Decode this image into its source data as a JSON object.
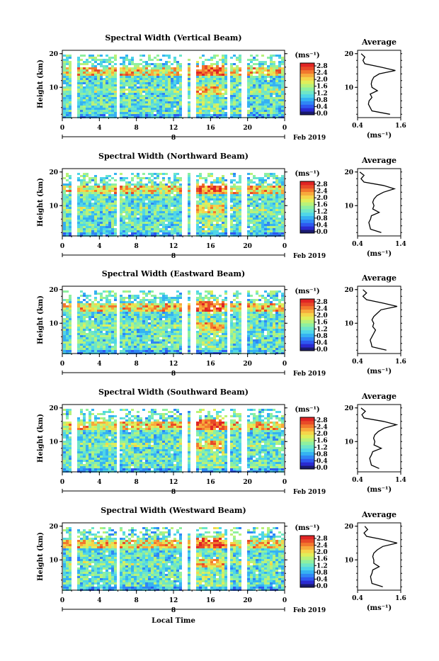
{
  "colors": {
    "scale": [
      "#1a1a6e",
      "#2a2ad0",
      "#2e58f0",
      "#2f86f5",
      "#35b2f2",
      "#4fd6e8",
      "#6ee6c8",
      "#8ef0a0",
      "#b8f27a",
      "#e0ee5a",
      "#f5d54a",
      "#f7aa3c",
      "#f2782e",
      "#e84a28",
      "#e02424"
    ]
  },
  "footer": {
    "xlabel": "Local Time"
  },
  "chart_data": [
    {
      "type": "heatmap",
      "title": "Spectral Width (Vertical Beam)",
      "ylabel": "Height (km)",
      "xticks": [
        "0",
        "4",
        "8",
        "12",
        "16",
        "20",
        "0"
      ],
      "yticks": [
        "20",
        "10"
      ],
      "date_label": "8",
      "month_label": "Feb 2019",
      "colorbar": {
        "unit": "(ms⁻¹)",
        "ticks": [
          "2.8",
          "2.4",
          "2.0",
          "1.6",
          "1.2",
          "0.8",
          "0.4",
          "0.0"
        ]
      },
      "gaps_hours": [
        1.2,
        5.9,
        13.0,
        14.0,
        17.8,
        19.5
      ],
      "profile": {
        "title": "Average",
        "xlabel": "(ms⁻¹)",
        "xticks": [
          "0.4",
          "1.6"
        ],
        "xlim": [
          0.4,
          1.6
        ],
        "yticks": [
          "20",
          "10"
        ],
        "heights": [
          2,
          3,
          4,
          5,
          6,
          7,
          8,
          9,
          10,
          11,
          12,
          13,
          14,
          15,
          16,
          17,
          18,
          19,
          20
        ],
        "values": [
          1.3,
          0.8,
          0.75,
          0.7,
          0.72,
          0.8,
          0.75,
          0.95,
          0.8,
          0.78,
          0.8,
          0.85,
          1.0,
          1.45,
          1.05,
          0.6,
          0.55,
          0.6,
          0.5
        ]
      }
    },
    {
      "type": "heatmap",
      "title": "Spectral Width (Northward Beam)",
      "ylabel": "Height (km)",
      "xticks": [
        "0",
        "4",
        "8",
        "12",
        "16",
        "20",
        "0"
      ],
      "yticks": [
        "20",
        "10"
      ],
      "date_label": "8",
      "month_label": "Feb 2019",
      "colorbar": {
        "unit": "(ms⁻¹)",
        "ticks": [
          "2.8",
          "2.4",
          "2.0",
          "1.6",
          "1.2",
          "0.8",
          "0.4",
          "0.0"
        ]
      },
      "gaps_hours": [
        1.2,
        5.9,
        13.0,
        14.0,
        17.8,
        19.5
      ],
      "profile": {
        "title": "Average",
        "xlabel": "(ms⁻¹)",
        "xticks": [
          "0.4",
          "1.4"
        ],
        "xlim": [
          0.4,
          1.4
        ],
        "yticks": [
          "20",
          "10"
        ],
        "heights": [
          2,
          3,
          4,
          5,
          6,
          7,
          8,
          9,
          10,
          11,
          12,
          13,
          14,
          15,
          16,
          17,
          18,
          19,
          20
        ],
        "values": [
          0.95,
          0.7,
          0.68,
          0.66,
          0.7,
          0.72,
          0.9,
          0.75,
          0.78,
          0.75,
          0.78,
          0.85,
          1.0,
          1.25,
          1.0,
          0.55,
          0.48,
          0.55,
          0.45
        ]
      }
    },
    {
      "type": "heatmap",
      "title": "Spectral Width (Eastward Beam)",
      "ylabel": "Height (km)",
      "xticks": [
        "0",
        "4",
        "8",
        "12",
        "16",
        "20",
        "0"
      ],
      "yticks": [
        "20",
        "10"
      ],
      "date_label": "8",
      "month_label": "Feb 2019",
      "colorbar": {
        "unit": "(ms⁻¹)",
        "ticks": [
          "2.8",
          "2.4",
          "2.0",
          "1.6",
          "1.2",
          "0.8",
          "0.4",
          "0.0"
        ]
      },
      "gaps_hours": [
        1.2,
        5.9,
        13.0,
        14.0,
        17.8,
        19.5
      ],
      "profile": {
        "title": "Average",
        "xlabel": "(ms⁻¹)",
        "xticks": [
          "0.4",
          "1.6"
        ],
        "xlim": [
          0.4,
          1.6
        ],
        "yticks": [
          "20",
          "10"
        ],
        "heights": [
          2,
          3,
          4,
          5,
          6,
          7,
          8,
          9,
          10,
          11,
          12,
          13,
          14,
          15,
          16,
          17,
          18,
          19,
          20
        ],
        "values": [
          1.2,
          0.8,
          0.78,
          0.75,
          0.8,
          0.85,
          0.9,
          0.82,
          0.85,
          0.8,
          0.85,
          0.95,
          1.05,
          1.5,
          1.1,
          0.65,
          0.55,
          0.65,
          0.55
        ]
      }
    },
    {
      "type": "heatmap",
      "title": "Spectral Width (Southward Beam)",
      "ylabel": "Height (km)",
      "xticks": [
        "0",
        "4",
        "8",
        "12",
        "16",
        "20",
        "0"
      ],
      "yticks": [
        "20",
        "10"
      ],
      "date_label": "8",
      "month_label": "Feb 2019",
      "colorbar": {
        "unit": "(ms⁻¹)",
        "ticks": [
          "2.8",
          "2.4",
          "2.0",
          "1.6",
          "1.2",
          "0.8",
          "0.4",
          "0.0"
        ]
      },
      "gaps_hours": [
        1.2,
        5.9,
        13.0,
        14.0,
        17.8,
        19.5
      ],
      "profile": {
        "title": "Average",
        "xlabel": "(ms⁻¹)",
        "xticks": [
          "0.4",
          "1.4"
        ],
        "xlim": [
          0.4,
          1.4
        ],
        "yticks": [
          "20",
          "10"
        ],
        "heights": [
          2,
          3,
          4,
          5,
          6,
          7,
          8,
          9,
          10,
          11,
          12,
          13,
          14,
          15,
          16,
          17,
          18,
          19,
          20
        ],
        "values": [
          0.9,
          0.72,
          0.7,
          0.68,
          0.72,
          0.75,
          0.95,
          0.78,
          0.8,
          0.77,
          0.8,
          0.88,
          1.02,
          1.3,
          1.0,
          0.55,
          0.5,
          0.58,
          0.48
        ]
      }
    },
    {
      "type": "heatmap",
      "title": "Spectral Width (Westward Beam)",
      "ylabel": "Height (km)",
      "xticks": [
        "0",
        "4",
        "8",
        "12",
        "16",
        "20",
        "0"
      ],
      "yticks": [
        "20",
        "10"
      ],
      "date_label": "8",
      "month_label": "Feb 2019",
      "colorbar": {
        "unit": "(ms⁻¹)",
        "ticks": [
          "2.8",
          "2.4",
          "2.0",
          "1.6",
          "1.2",
          "0.8",
          "0.4",
          "0.0"
        ]
      },
      "gaps_hours": [
        1.2,
        5.9,
        13.0,
        14.0,
        17.8,
        19.5
      ],
      "profile": {
        "title": "Average",
        "xlabel": "(ms⁻¹)",
        "xticks": [
          "0.4",
          "1.6"
        ],
        "xlim": [
          0.4,
          1.6
        ],
        "yticks": [
          "20",
          "10"
        ],
        "heights": [
          2,
          3,
          4,
          5,
          6,
          7,
          8,
          9,
          10,
          11,
          12,
          13,
          14,
          15,
          16,
          17,
          18,
          19,
          20
        ],
        "values": [
          1.1,
          0.8,
          0.78,
          0.76,
          0.8,
          0.82,
          1.0,
          0.85,
          0.85,
          0.82,
          0.85,
          0.95,
          1.1,
          1.5,
          1.12,
          0.65,
          0.58,
          0.68,
          0.6
        ]
      }
    }
  ]
}
